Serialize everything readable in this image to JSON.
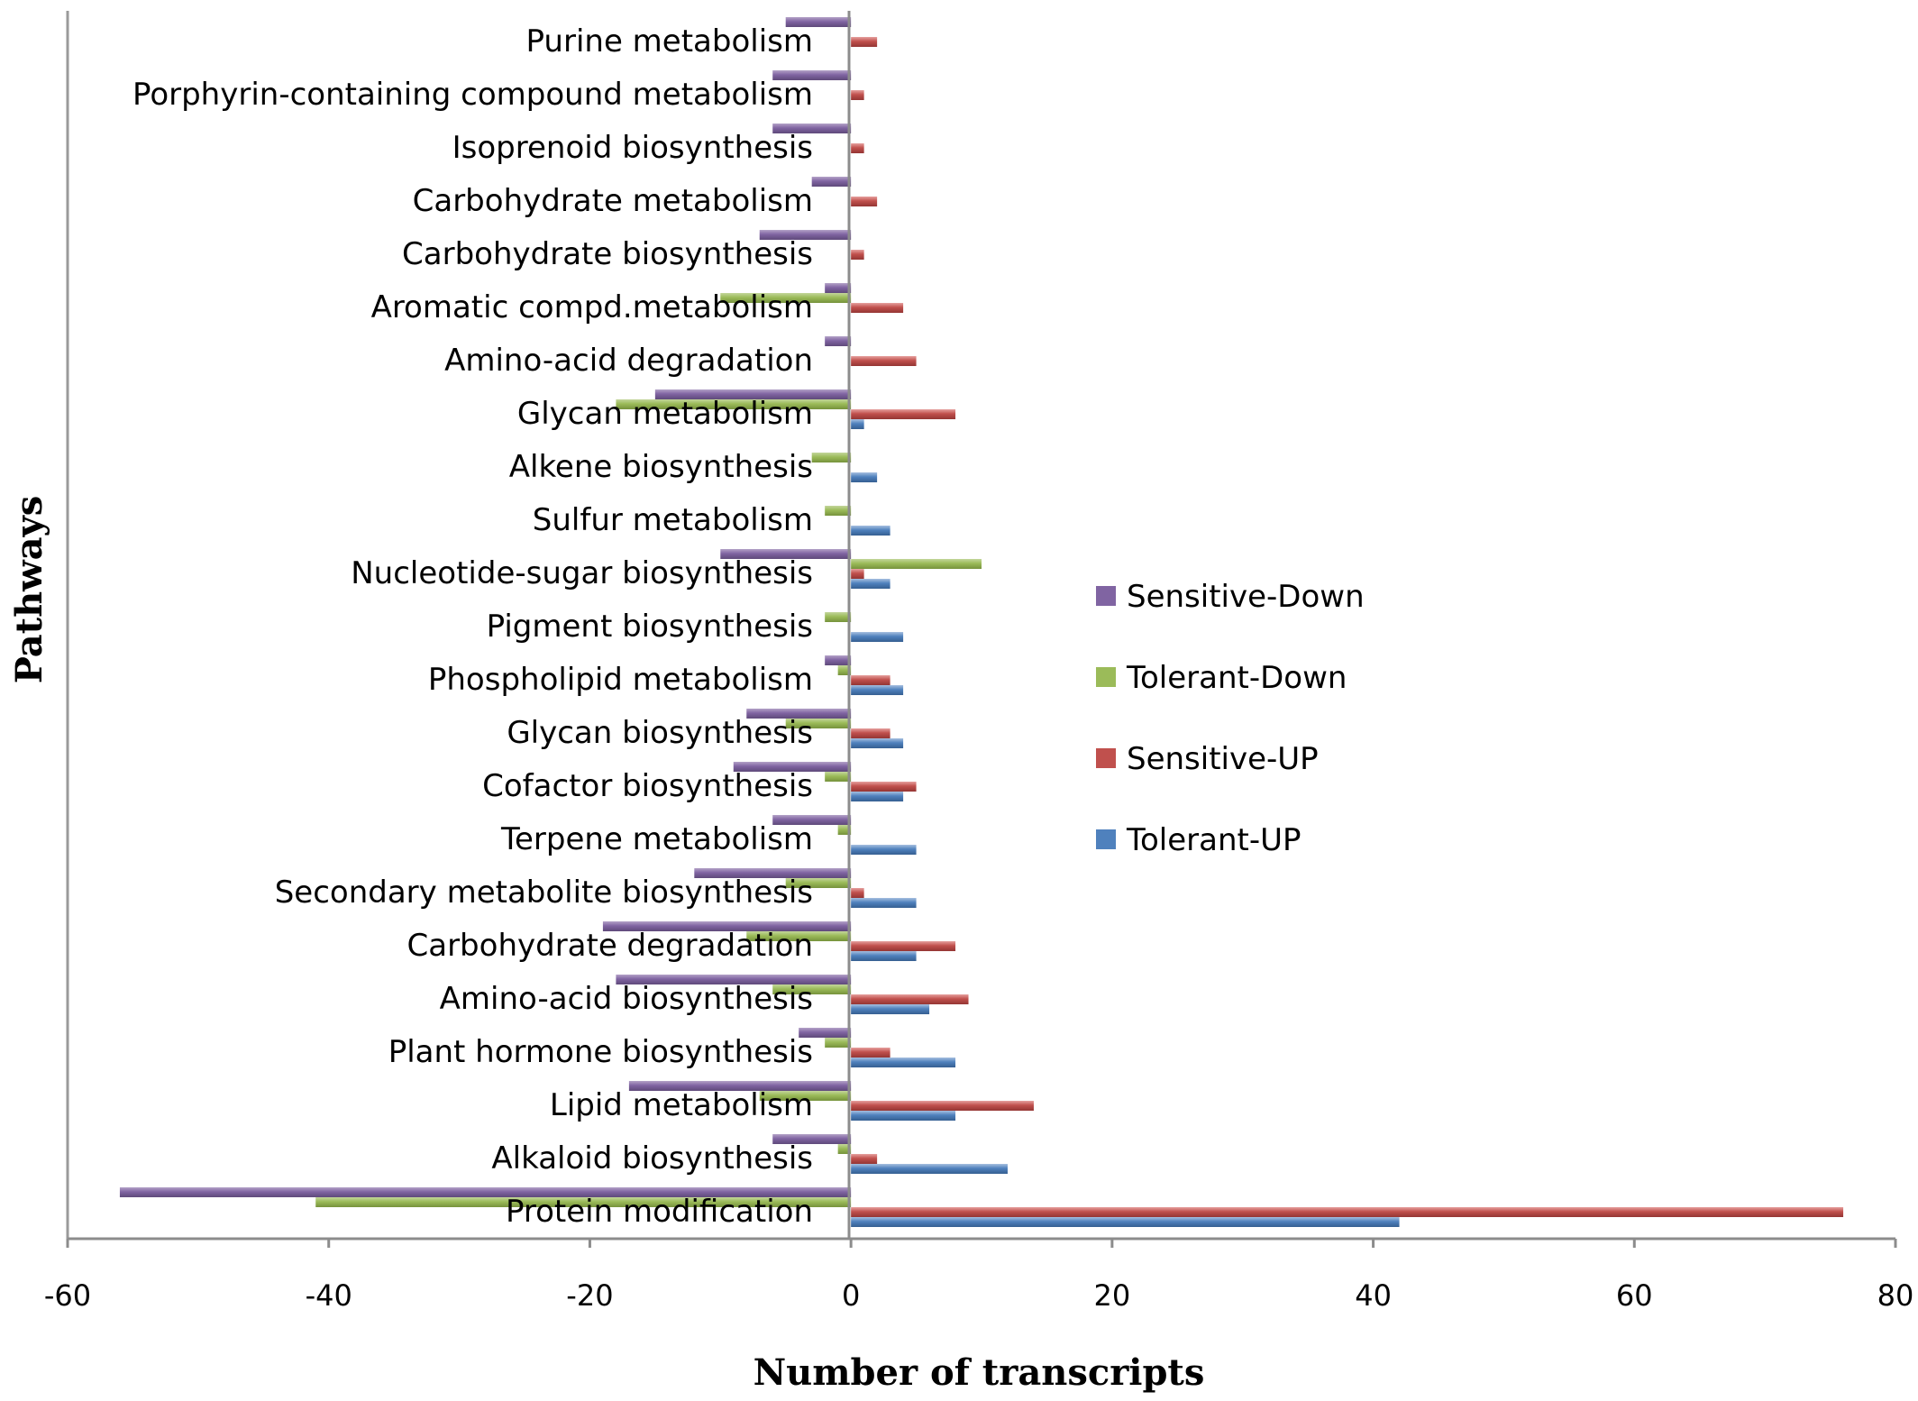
{
  "chart_data": {
    "type": "bar",
    "orientation": "horizontal",
    "title": "",
    "xlabel": "Number of transcripts",
    "ylabel": "Pathways",
    "xlim": [
      -60,
      80
    ],
    "xticks": [
      -60,
      -40,
      -20,
      0,
      20,
      40,
      60,
      80
    ],
    "grid": false,
    "legend_position": "right",
    "categories": [
      "Purine metabolism",
      "Porphyrin-containing compound metabolism",
      "Isoprenoid biosynthesis",
      "Carbohydrate metabolism",
      "Carbohydrate biosynthesis",
      "Aromatic compd.metabolism",
      "Amino-acid degradation",
      "Glycan metabolism",
      "Alkene biosynthesis",
      "Sulfur metabolism",
      "Nucleotide-sugar biosynthesis",
      "Pigment biosynthesis",
      "Phospholipid metabolism",
      "Glycan biosynthesis",
      "Cofactor biosynthesis",
      "Terpene metabolism",
      "Secondary metabolite biosynthesis",
      "Carbohydrate degradation",
      "Amino-acid biosynthesis",
      "Plant hormone biosynthesis",
      "Lipid metabolism",
      "Alkaloid biosynthesis",
      "Protein modification"
    ],
    "series": [
      {
        "name": "Sensitive-Down",
        "color": "#8064a2",
        "values": [
          -5,
          -6,
          -6,
          -3,
          -7,
          -2,
          -2,
          -15,
          0,
          0,
          -10,
          0,
          -2,
          -8,
          -9,
          -6,
          -12,
          -19,
          -18,
          -4,
          -17,
          -6,
          -56
        ]
      },
      {
        "name": "Tolerant-Down",
        "color": "#9bbb59",
        "values": [
          0,
          0,
          0,
          0,
          0,
          -10,
          0,
          -18,
          -3,
          -2,
          10,
          -2,
          -1,
          -5,
          -2,
          -1,
          -5,
          -8,
          -6,
          -2,
          -7,
          -1,
          -41
        ]
      },
      {
        "name": "Sensitive-UP",
        "color": "#c0504d",
        "values": [
          2,
          1,
          1,
          2,
          1,
          4,
          5,
          8,
          0,
          0,
          1,
          0,
          3,
          3,
          5,
          0,
          1,
          8,
          9,
          3,
          14,
          2,
          76
        ]
      },
      {
        "name": "Tolerant-UP",
        "color": "#4f81bd",
        "values": [
          0,
          0,
          0,
          0,
          0,
          0,
          0,
          1,
          2,
          3,
          3,
          4,
          4,
          4,
          4,
          5,
          5,
          5,
          6,
          8,
          8,
          12,
          42
        ]
      }
    ]
  }
}
